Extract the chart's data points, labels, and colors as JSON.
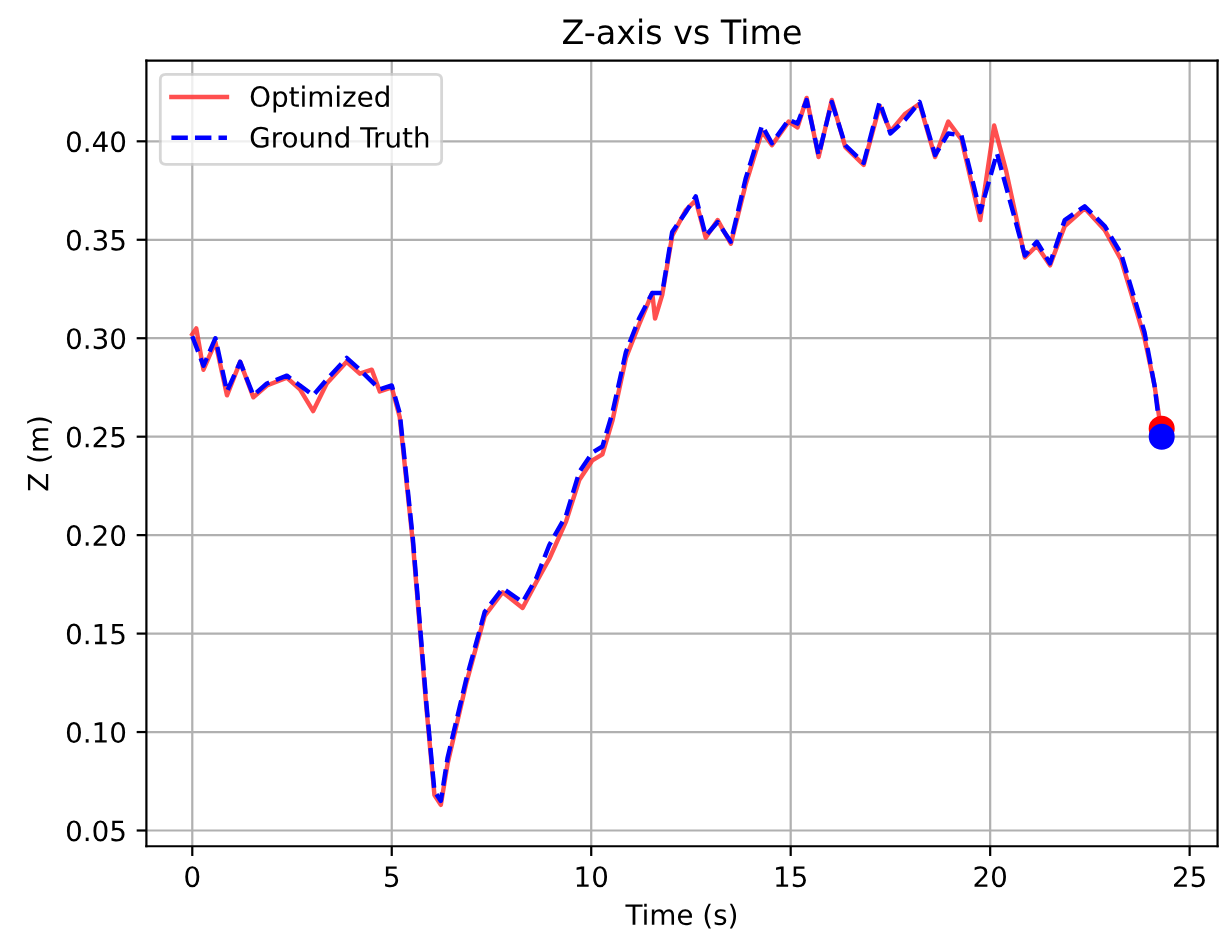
{
  "chart_data": {
    "type": "line",
    "title": "Z-axis vs Time",
    "xlabel": "Time (s)",
    "ylabel": "Z (m)",
    "xlim": [
      -1.15,
      25.7
    ],
    "ylim": [
      0.042,
      0.441
    ],
    "xticks": [
      0,
      5,
      10,
      15,
      20,
      25
    ],
    "yticks": [
      0.05,
      {
        "value": 0.1,
        "label": "0.10"
      },
      0.15,
      {
        "value": 0.2,
        "label": "0.20"
      },
      0.25,
      {
        "value": 0.3,
        "label": "0.30"
      },
      0.35,
      {
        "value": 0.4,
        "label": "0.40"
      }
    ],
    "grid": true,
    "legend": "top left",
    "series": [
      {
        "name": "Optimized",
        "color": "#ff3030",
        "line_style": "solid",
        "x": [
          0,
          0.1,
          0.28,
          0.58,
          0.87,
          1.2,
          1.53,
          1.87,
          2.37,
          2.7,
          3.03,
          3.37,
          3.87,
          4.2,
          4.5,
          4.7,
          5.0,
          5.2,
          5.53,
          5.87,
          6.07,
          6.23,
          6.4,
          6.87,
          7.33,
          7.78,
          8.28,
          8.62,
          8.95,
          9.37,
          9.7,
          10.03,
          10.28,
          10.53,
          10.87,
          11.2,
          11.53,
          11.6,
          11.78,
          12.03,
          12.37,
          12.62,
          12.87,
          13.17,
          13.5,
          13.87,
          14.28,
          14.53,
          14.95,
          15.17,
          15.4,
          15.7,
          16.03,
          16.37,
          16.83,
          17.23,
          17.5,
          17.87,
          18.23,
          18.62,
          18.95,
          19.28,
          19.75,
          20.1,
          20.4,
          20.87,
          21.17,
          21.5,
          21.87,
          22.37,
          22.87,
          23.28,
          23.87,
          24.12,
          24.28
        ],
        "values": [
          0.302,
          0.305,
          0.284,
          0.298,
          0.271,
          0.288,
          0.27,
          0.276,
          0.28,
          0.274,
          0.263,
          0.277,
          0.288,
          0.282,
          0.284,
          0.273,
          0.275,
          0.26,
          0.196,
          0.112,
          0.068,
          0.063,
          0.084,
          0.125,
          0.159,
          0.171,
          0.163,
          0.176,
          0.188,
          0.207,
          0.228,
          0.238,
          0.241,
          0.258,
          0.29,
          0.307,
          0.323,
          0.31,
          0.322,
          0.352,
          0.365,
          0.37,
          0.351,
          0.36,
          0.348,
          0.378,
          0.405,
          0.398,
          0.41,
          0.407,
          0.422,
          0.392,
          0.421,
          0.397,
          0.388,
          0.418,
          0.405,
          0.414,
          0.419,
          0.392,
          0.41,
          0.401,
          0.36,
          0.408,
          0.385,
          0.341,
          0.347,
          0.337,
          0.357,
          0.366,
          0.355,
          0.34,
          0.3,
          0.276,
          0.254
        ]
      },
      {
        "name": "Ground Truth",
        "color": "#0000ff",
        "line_style": "dashed",
        "x": [
          0,
          0.28,
          0.58,
          0.87,
          1.2,
          1.53,
          1.87,
          2.37,
          2.7,
          3.03,
          3.37,
          3.87,
          4.2,
          4.7,
          5.0,
          5.2,
          5.53,
          5.87,
          6.07,
          6.23,
          6.4,
          6.87,
          7.33,
          7.78,
          8.28,
          8.62,
          8.95,
          9.37,
          9.7,
          10.03,
          10.28,
          10.53,
          10.87,
          11.2,
          11.53,
          11.78,
          12.03,
          12.37,
          12.62,
          12.87,
          13.17,
          13.5,
          13.87,
          14.28,
          14.53,
          14.95,
          15.17,
          15.4,
          15.7,
          16.03,
          16.37,
          16.83,
          17.23,
          17.5,
          17.87,
          18.23,
          18.62,
          18.95,
          19.28,
          19.75,
          20.17,
          20.87,
          21.17,
          21.5,
          21.87,
          22.37,
          22.87,
          23.28,
          23.87,
          24.12,
          24.28
        ],
        "values": [
          0.301,
          0.286,
          0.3,
          0.273,
          0.288,
          0.271,
          0.277,
          0.281,
          0.276,
          0.271,
          0.279,
          0.29,
          0.284,
          0.274,
          0.276,
          0.262,
          0.198,
          0.114,
          0.07,
          0.065,
          0.087,
          0.127,
          0.161,
          0.173,
          0.166,
          0.178,
          0.195,
          0.21,
          0.232,
          0.242,
          0.245,
          0.262,
          0.293,
          0.31,
          0.323,
          0.323,
          0.354,
          0.364,
          0.372,
          0.352,
          0.359,
          0.349,
          0.381,
          0.408,
          0.399,
          0.411,
          0.409,
          0.421,
          0.393,
          0.42,
          0.398,
          0.389,
          0.42,
          0.404,
          0.411,
          0.42,
          0.393,
          0.404,
          0.403,
          0.364,
          0.394,
          0.342,
          0.349,
          0.338,
          0.36,
          0.367,
          0.357,
          0.343,
          0.303,
          0.276,
          0.25
        ]
      },
      {
        "type": "scatter",
        "color": "#ff0000",
        "x": [
          24.3
        ],
        "values": [
          0.254
        ]
      },
      {
        "type": "scatter",
        "color": "#0000ff",
        "x": [
          24.3
        ],
        "values": [
          0.25
        ]
      }
    ]
  }
}
